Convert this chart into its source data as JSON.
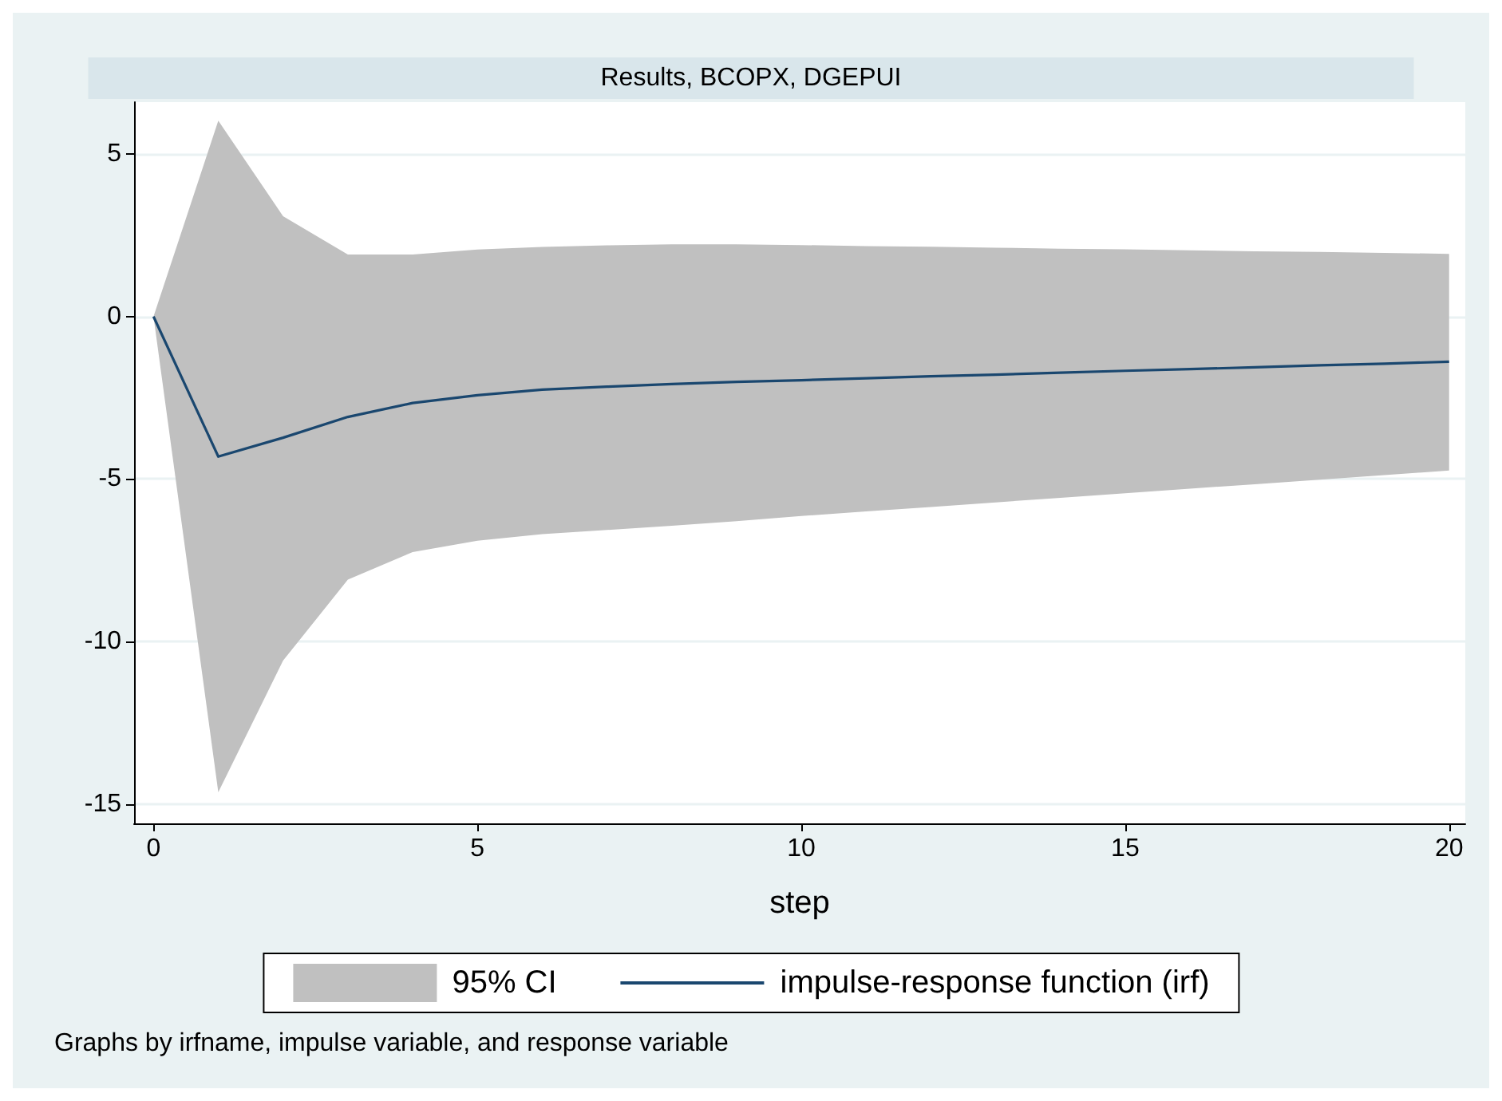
{
  "chart_data": {
    "type": "line",
    "title": "Results, BCOPX, DGEPUI",
    "xlabel": "step",
    "annotations": [
      "95% CI",
      "Graphs by irfname, impulse variable, and response variable"
    ],
    "x": [
      0,
      1,
      2,
      3,
      4,
      5,
      6,
      7,
      8,
      9,
      10,
      11,
      12,
      13,
      14,
      15,
      16,
      17,
      18,
      19,
      20
    ],
    "series": [
      {
        "name": "impulse-response function (irf)",
        "color": "#1a476f",
        "values": [
          0,
          -4.31,
          -3.73,
          -3.09,
          -2.66,
          -2.42,
          -2.25,
          -2.16,
          -2.08,
          -2.01,
          -1.96,
          -1.9,
          -1.84,
          -1.79,
          -1.73,
          -1.67,
          -1.62,
          -1.56,
          -1.5,
          -1.45,
          -1.39
        ],
        "lower": [
          0,
          -14.64,
          -10.59,
          -8.1,
          -7.25,
          -6.9,
          -6.7,
          -6.57,
          -6.44,
          -6.3,
          -6.14,
          -6.0,
          -5.86,
          -5.72,
          -5.58,
          -5.44,
          -5.3,
          -5.16,
          -5.02,
          -4.88,
          -4.74
        ],
        "upper": [
          0,
          6.03,
          3.09,
          1.91,
          1.91,
          2.06,
          2.14,
          2.19,
          2.22,
          2.22,
          2.2,
          2.17,
          2.15,
          2.12,
          2.09,
          2.07,
          2.04,
          2.01,
          1.99,
          1.96,
          1.93
        ]
      }
    ],
    "xlim": [
      -0.3,
      20.25
    ],
    "xticks": [
      0,
      5,
      10,
      15,
      20
    ],
    "ylim": [
      -15.6,
      6.6
    ],
    "yticks": [
      -15,
      -10,
      -5,
      0,
      5
    ],
    "grid": "y",
    "legend": "bottom",
    "marker": "none",
    "line_style": "solid"
  }
}
